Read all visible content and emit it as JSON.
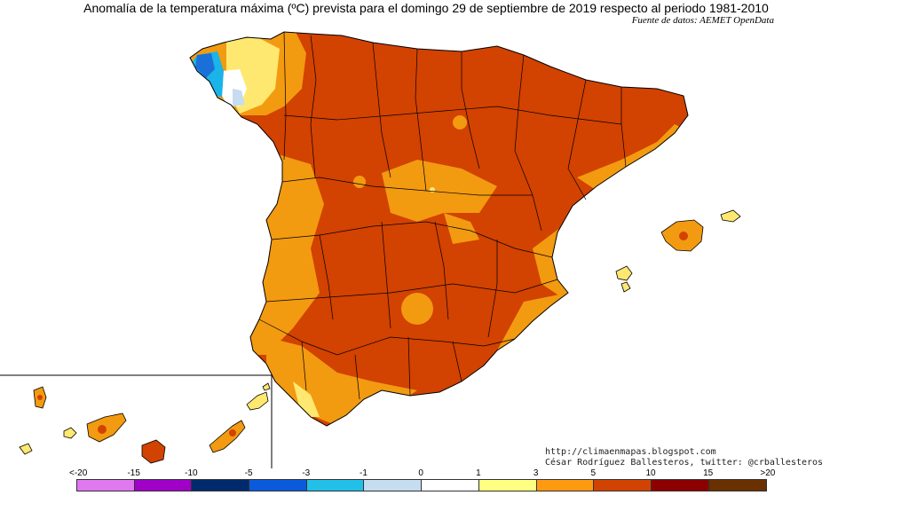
{
  "title": "Anomalía de la temperatura máxima (ºC) prevista para el domingo 29 de septiembre de 2019 respecto al periodo 1981-2010",
  "source": "Fuente de datos: AEMET OpenData",
  "credits": {
    "blog": "http://climaenmapas.blogspot.com",
    "author": "César Rodríguez Ballesteros, twitter: @crballesteros"
  },
  "legend": {
    "ticks": [
      "<-20",
      "-15",
      "-10",
      "-5",
      "-3",
      "-1",
      "0",
      "1",
      "3",
      "5",
      "10",
      "15",
      ">20"
    ],
    "colors": [
      "#e078f0",
      "#a000c8",
      "#002a6e",
      "#0a5adc",
      "#20c0e8",
      "#c6dcf0",
      "#ffffff",
      "#ffff80",
      "#ff9a10",
      "#d24200",
      "#8c0000",
      "#6a3000"
    ]
  },
  "map_colors": {
    "very_warm": "#d24200",
    "warm": "#f29a10",
    "mild": "#ffe870",
    "neutral": "#ffffff",
    "cool": "#c6dcf0",
    "cold": "#1ab4e8",
    "colder": "#1a70d8"
  }
}
